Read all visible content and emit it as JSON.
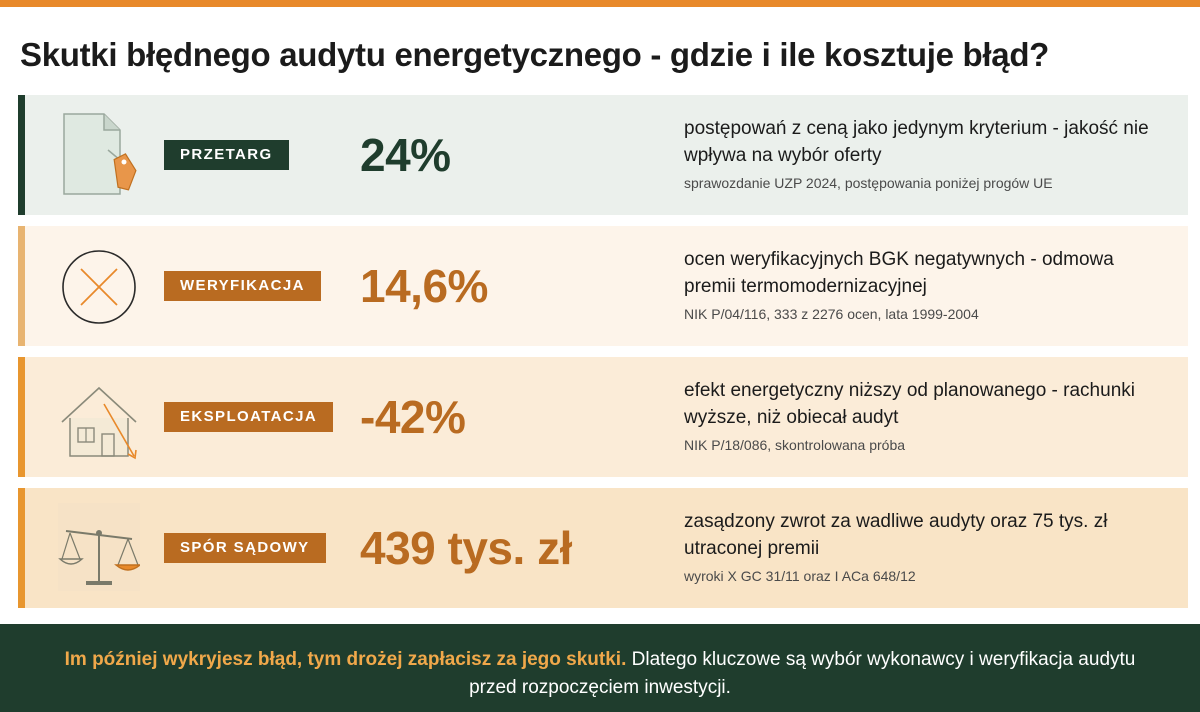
{
  "title": "Skutki błędnego audytu energetycznego - gdzie i ile kosztuje błąd?",
  "colors": {
    "top_bar": "#e8892a",
    "dark_green": "#1f3d2d",
    "orange": "#c0701f",
    "footer_highlight": "#f0a84a"
  },
  "rows": [
    {
      "tag": "PRZETARG",
      "stat": "24%",
      "description": "postępowań z ceną jako jedynym kryterium - jakość nie wpływa na wybór oferty",
      "source": "sprawozdanie UZP 2024, postępowania poniżej progów UE",
      "icon": "document-price-tag-icon",
      "background": "#ebf0ec",
      "accent": "#1f3d2d",
      "tag_color": "#1f3d2d",
      "stat_color": "#1f3d2d"
    },
    {
      "tag": "WERYFIKACJA",
      "stat": "14,6%",
      "description": "ocen weryfikacyjnych BGK negatywnych - odmowa premii termomodernizacyjnej",
      "source": "NIK P/04/116, 333 z 2276 ocen, lata 1999-2004",
      "icon": "circle-x-icon",
      "background": "#fdf4ea",
      "accent": "#e8b471",
      "tag_color": "#b96b21",
      "stat_color": "#b96b21"
    },
    {
      "tag": "EKSPLOATACJA",
      "stat": "-42%",
      "description": "efekt energetyczny niższy od planowanego - rachunki wyższe, niż obiecał audyt",
      "source": "NIK P/18/086, skontrolowana próba",
      "icon": "house-decline-icon",
      "background": "#fbecd8",
      "accent": "#e8962f",
      "tag_color": "#b96b21",
      "stat_color": "#b96b21"
    },
    {
      "tag": "SPÓR SĄDOWY",
      "stat": "439 tys. zł",
      "description": "zasądzony zwrot za wadliwe audyty oraz 75 tys. zł utraconej premii",
      "source": "wyroki X GC 31/11 oraz I ACa 648/12",
      "icon": "scales-icon",
      "background": "#f9e4c6",
      "accent": "#e8962f",
      "tag_color": "#b96b21",
      "stat_color": "#b96b21"
    }
  ],
  "footer": {
    "highlight": "Im później wykryjesz błąd, tym drożej zapłacisz za jego skutki.",
    "text": " Dlatego kluczowe są wybór wykonawcy i weryfikacja audytu przed rozpoczęciem inwestycji."
  }
}
